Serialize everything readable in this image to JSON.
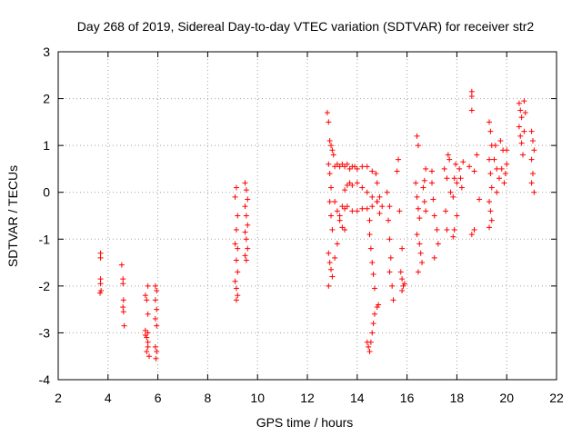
{
  "chart_data": {
    "type": "scatter",
    "title": "Day 268 of 2019, Sidereal Day-to-day VTEC variation (SDTVAR) for receiver str2",
    "xlabel": "GPS time / hours",
    "ylabel": "SDTVAR / TECUs",
    "xlim": [
      2,
      22
    ],
    "ylim": [
      -4,
      3
    ],
    "xticks": [
      "2",
      "4",
      "6",
      "8",
      "10",
      "12",
      "14",
      "16",
      "18",
      "20",
      "22"
    ],
    "yticks": [
      "-4",
      "-3",
      "-2",
      "-1",
      "0",
      "1",
      "2",
      "3"
    ],
    "grid": true,
    "legend": "none",
    "marker": "+",
    "color": "#ff0000",
    "series": [
      {
        "name": "str2",
        "points": [
          [
            3.7,
            -1.3
          ],
          [
            3.7,
            -1.4
          ],
          [
            3.7,
            -1.85
          ],
          [
            3.7,
            -1.95
          ],
          [
            3.72,
            -2.1
          ],
          [
            3.68,
            -2.15
          ],
          [
            4.55,
            -1.55
          ],
          [
            4.6,
            -1.85
          ],
          [
            4.6,
            -1.95
          ],
          [
            4.62,
            -2.3
          ],
          [
            4.6,
            -2.45
          ],
          [
            4.62,
            -2.55
          ],
          [
            4.65,
            -2.85
          ],
          [
            5.5,
            -2.2
          ],
          [
            5.55,
            -2.3
          ],
          [
            5.6,
            -2.0
          ],
          [
            5.6,
            -2.6
          ],
          [
            5.5,
            -2.95
          ],
          [
            5.55,
            -3.1
          ],
          [
            5.6,
            -3.2
          ],
          [
            5.6,
            -3.3
          ],
          [
            5.55,
            -3.4
          ],
          [
            5.65,
            -3.5
          ],
          [
            5.5,
            -3.05
          ],
          [
            5.6,
            -3.0
          ],
          [
            5.9,
            -2.0
          ],
          [
            5.95,
            -2.1
          ],
          [
            5.9,
            -2.3
          ],
          [
            5.95,
            -2.5
          ],
          [
            5.9,
            -2.7
          ],
          [
            5.95,
            -2.85
          ],
          [
            5.9,
            -3.3
          ],
          [
            5.95,
            -3.4
          ],
          [
            5.92,
            -3.55
          ],
          [
            9.15,
            0.1
          ],
          [
            9.1,
            -0.1
          ],
          [
            9.2,
            -0.5
          ],
          [
            9.15,
            -0.8
          ],
          [
            9.1,
            -1.1
          ],
          [
            9.2,
            -1.2
          ],
          [
            9.15,
            -1.45
          ],
          [
            9.2,
            -1.7
          ],
          [
            9.1,
            -1.9
          ],
          [
            9.15,
            -2.05
          ],
          [
            9.2,
            -2.2
          ],
          [
            9.15,
            -2.3
          ],
          [
            9.5,
            0.2
          ],
          [
            9.55,
            0.05
          ],
          [
            9.6,
            -0.15
          ],
          [
            9.5,
            -0.3
          ],
          [
            9.55,
            -0.5
          ],
          [
            9.6,
            -0.7
          ],
          [
            9.5,
            -0.85
          ],
          [
            9.55,
            -1.0
          ],
          [
            9.6,
            -1.2
          ],
          [
            9.5,
            -1.35
          ],
          [
            9.55,
            -1.45
          ],
          [
            12.8,
            1.7
          ],
          [
            12.85,
            1.5
          ],
          [
            12.9,
            1.1
          ],
          [
            12.95,
            1.0
          ],
          [
            13.0,
            0.9
          ],
          [
            13.05,
            0.8
          ],
          [
            12.85,
            0.6
          ],
          [
            12.9,
            0.4
          ],
          [
            12.95,
            0.1
          ],
          [
            12.9,
            -0.2
          ],
          [
            12.95,
            -0.5
          ],
          [
            13.0,
            -0.8
          ],
          [
            12.85,
            -1.3
          ],
          [
            12.9,
            -1.5
          ],
          [
            12.95,
            -1.65
          ],
          [
            13.0,
            -1.8
          ],
          [
            12.85,
            -2.0
          ],
          [
            13.1,
            -0.2
          ],
          [
            13.2,
            -0.4
          ],
          [
            13.3,
            -0.6
          ],
          [
            13.4,
            -0.75
          ],
          [
            13.5,
            -0.8
          ],
          [
            13.2,
            -1.1
          ],
          [
            13.1,
            -1.4
          ],
          [
            13.3,
            -0.5
          ],
          [
            13.4,
            -0.3
          ],
          [
            13.5,
            -0.35
          ],
          [
            13.1,
            0.55
          ],
          [
            13.2,
            0.6
          ],
          [
            13.3,
            0.55
          ],
          [
            13.4,
            0.6
          ],
          [
            13.5,
            0.55
          ],
          [
            13.6,
            0.6
          ],
          [
            13.7,
            0.5
          ],
          [
            13.8,
            0.55
          ],
          [
            13.9,
            0.55
          ],
          [
            14.0,
            0.5
          ],
          [
            14.2,
            0.55
          ],
          [
            14.4,
            0.55
          ],
          [
            14.6,
            0.45
          ],
          [
            13.5,
            0.05
          ],
          [
            13.6,
            0.15
          ],
          [
            13.7,
            0.2
          ],
          [
            13.8,
            0.15
          ],
          [
            14.0,
            0.2
          ],
          [
            14.2,
            0.1
          ],
          [
            14.4,
            0.0
          ],
          [
            14.6,
            -0.1
          ],
          [
            14.8,
            -0.2
          ],
          [
            13.6,
            -0.3
          ],
          [
            13.8,
            -0.4
          ],
          [
            14.0,
            -0.4
          ],
          [
            14.2,
            -0.35
          ],
          [
            14.4,
            -0.35
          ],
          [
            14.6,
            -0.3
          ],
          [
            14.8,
            -0.2
          ],
          [
            14.75,
            0.4
          ],
          [
            14.8,
            0.2
          ],
          [
            14.9,
            -0.1
          ],
          [
            15.0,
            -0.3
          ],
          [
            14.9,
            -0.45
          ],
          [
            14.5,
            -0.6
          ],
          [
            14.5,
            -0.9
          ],
          [
            14.55,
            -1.2
          ],
          [
            14.6,
            -1.5
          ],
          [
            14.65,
            -1.75
          ],
          [
            14.7,
            -2.05
          ],
          [
            14.4,
            -3.2
          ],
          [
            14.45,
            -3.3
          ],
          [
            14.5,
            -3.4
          ],
          [
            14.55,
            -3.2
          ],
          [
            14.6,
            -3.0
          ],
          [
            14.65,
            -2.8
          ],
          [
            14.7,
            -2.6
          ],
          [
            14.8,
            -2.45
          ],
          [
            14.85,
            -2.4
          ],
          [
            15.2,
            0.0
          ],
          [
            15.3,
            -0.3
          ],
          [
            15.25,
            -0.6
          ],
          [
            15.3,
            -1.0
          ],
          [
            15.35,
            -1.4
          ],
          [
            15.3,
            -1.7
          ],
          [
            15.4,
            -2.0
          ],
          [
            15.45,
            -2.3
          ],
          [
            15.6,
            0.45
          ],
          [
            15.65,
            0.7
          ],
          [
            15.7,
            -0.4
          ],
          [
            15.8,
            -1.2
          ],
          [
            15.75,
            -1.7
          ],
          [
            15.8,
            -1.85
          ],
          [
            15.85,
            -2.0
          ],
          [
            15.9,
            -1.95
          ],
          [
            15.8,
            -2.1
          ],
          [
            16.4,
            1.2
          ],
          [
            16.45,
            1.0
          ],
          [
            16.35,
            0.2
          ],
          [
            16.4,
            -0.1
          ],
          [
            16.45,
            -0.35
          ],
          [
            16.5,
            -0.55
          ],
          [
            16.4,
            -0.9
          ],
          [
            16.5,
            -1.1
          ],
          [
            16.55,
            -1.3
          ],
          [
            16.6,
            -1.5
          ],
          [
            16.45,
            -1.7
          ],
          [
            16.65,
            0.1
          ],
          [
            16.7,
            0.25
          ],
          [
            16.75,
            0.5
          ],
          [
            16.7,
            -0.2
          ],
          [
            16.75,
            -0.4
          ],
          [
            17.0,
            0.45
          ],
          [
            17.0,
            0.2
          ],
          [
            17.05,
            -0.15
          ],
          [
            17.1,
            -0.5
          ],
          [
            17.2,
            -0.8
          ],
          [
            17.25,
            -1.1
          ],
          [
            17.1,
            -1.4
          ],
          [
            17.5,
            0.5
          ],
          [
            17.6,
            0.3
          ],
          [
            17.55,
            -0.4
          ],
          [
            17.6,
            -0.8
          ],
          [
            17.7,
            0.7
          ],
          [
            17.65,
            0.8
          ],
          [
            17.75,
            0.0
          ],
          [
            17.85,
            -0.1
          ],
          [
            17.9,
            0.3
          ],
          [
            17.95,
            0.6
          ],
          [
            18.0,
            0.2
          ],
          [
            18.0,
            -0.5
          ],
          [
            17.9,
            -0.8
          ],
          [
            17.85,
            -0.95
          ],
          [
            18.1,
            0.5
          ],
          [
            18.15,
            0.3
          ],
          [
            18.2,
            0.1
          ],
          [
            18.25,
            0.65
          ],
          [
            18.6,
            2.15
          ],
          [
            18.6,
            2.05
          ],
          [
            18.6,
            1.75
          ],
          [
            18.5,
            0.55
          ],
          [
            18.7,
            0.45
          ],
          [
            18.6,
            -0.9
          ],
          [
            18.7,
            -0.8
          ],
          [
            18.9,
            -0.15
          ],
          [
            18.8,
            0.8
          ],
          [
            19.3,
            1.5
          ],
          [
            19.35,
            1.3
          ],
          [
            19.4,
            1.0
          ],
          [
            19.3,
            0.7
          ],
          [
            19.35,
            0.4
          ],
          [
            19.4,
            0.1
          ],
          [
            19.3,
            -0.2
          ],
          [
            19.35,
            -0.4
          ],
          [
            19.4,
            -0.6
          ],
          [
            19.3,
            -0.75
          ],
          [
            19.5,
            0.7
          ],
          [
            19.6,
            0.5
          ],
          [
            19.7,
            0.3
          ],
          [
            19.8,
            0.5
          ],
          [
            19.9,
            0.2
          ],
          [
            20.0,
            0.6
          ],
          [
            19.55,
            1.0
          ],
          [
            19.75,
            1.1
          ],
          [
            19.85,
            0.9
          ],
          [
            19.95,
            0.4
          ],
          [
            20.0,
            0.9
          ],
          [
            19.6,
            0.0
          ],
          [
            20.5,
            1.9
          ],
          [
            20.55,
            1.75
          ],
          [
            20.6,
            1.6
          ],
          [
            20.5,
            1.4
          ],
          [
            20.55,
            1.2
          ],
          [
            20.6,
            1.05
          ],
          [
            20.65,
            0.8
          ],
          [
            20.7,
            1.95
          ],
          [
            20.75,
            1.7
          ],
          [
            20.7,
            1.3
          ],
          [
            21.0,
            1.3
          ],
          [
            21.05,
            1.1
          ],
          [
            21.0,
            0.7
          ],
          [
            21.1,
            0.9
          ],
          [
            21.05,
            0.4
          ],
          [
            21.0,
            0.2
          ],
          [
            21.1,
            0.0
          ]
        ]
      }
    ]
  }
}
